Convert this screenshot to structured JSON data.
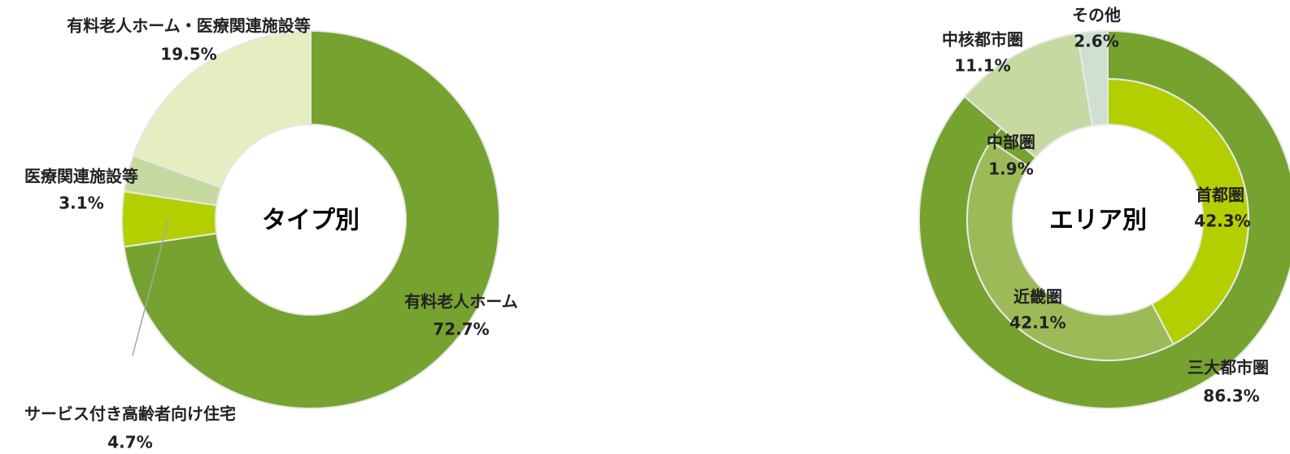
{
  "chart_data": [
    {
      "type": "donut",
      "center_label": "タイプ別",
      "categories": [
        "有料老人ホーム",
        "サービス付き高齢者向け住宅",
        "医療関連施設等",
        "有料老人ホーム・医療関連施設等"
      ],
      "values": [
        72.7,
        4.7,
        3.1,
        19.5
      ],
      "value_labels": [
        "72.7%",
        "4.7%",
        "3.1%",
        "19.5%"
      ],
      "colors": [
        "#76a22f",
        "#b3cf00",
        "#c6d9a0",
        "#e5eec0"
      ]
    },
    {
      "type": "nested-donut",
      "center_label": "エリア別",
      "categories": [
        "三大都市圏",
        "中核都市圏",
        "その他"
      ],
      "values": [
        86.3,
        11.1,
        2.6
      ],
      "value_labels": [
        "86.3%",
        "11.1%",
        "2.6%"
      ],
      "colors": [
        "#76a22f",
        "#c6d9a0",
        "#cfe0d0"
      ],
      "inner": {
        "categories": [
          "首都圏",
          "近畿圏",
          "中部圏"
        ],
        "values": [
          42.3,
          42.1,
          1.9
        ],
        "value_labels": [
          "42.3%",
          "42.1%",
          "1.9%"
        ],
        "colors": [
          "#b3cf00",
          "#9cbb58",
          "#76a22f"
        ]
      }
    }
  ]
}
